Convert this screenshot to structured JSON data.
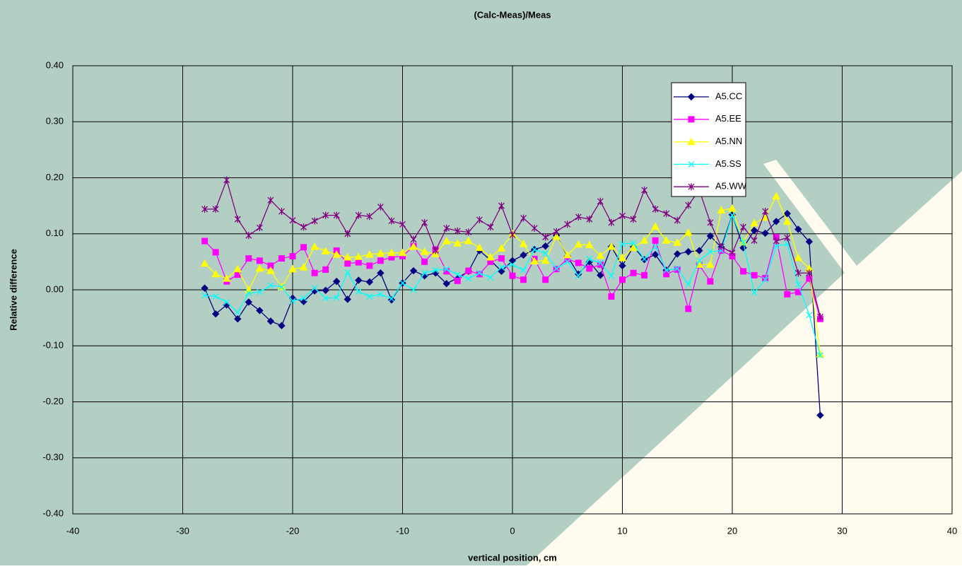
{
  "chart_data": {
    "type": "line",
    "title": "(Calc-Meas)/Meas",
    "x_label": "vertical position, cm",
    "y_label": "Relative difference",
    "x": [
      -28,
      -27,
      -26,
      -25,
      -24,
      -23,
      -22,
      -21,
      -20,
      -19,
      -18,
      -17,
      -16,
      -15,
      -14,
      -13,
      -12,
      -11,
      -10,
      -9,
      -8,
      -7,
      -6,
      -5,
      -4,
      -3,
      -2,
      -1,
      0,
      1,
      2,
      3,
      4,
      5,
      6,
      7,
      8,
      9,
      10,
      11,
      12,
      13,
      14,
      15,
      16,
      17,
      18,
      19,
      20,
      21,
      22,
      23,
      24,
      25,
      26,
      27,
      28
    ],
    "series": [
      {
        "name": "A5.CC",
        "color": "#000080",
        "marker": "diamond",
        "values": [
          0.003,
          -0.043,
          -0.027,
          -0.052,
          -0.022,
          -0.037,
          -0.056,
          -0.064,
          -0.015,
          -0.021,
          -0.002,
          -0.001,
          0.015,
          -0.017,
          0.017,
          0.014,
          0.03,
          -0.018,
          0.012,
          0.034,
          0.025,
          0.03,
          0.011,
          0.021,
          0.033,
          0.07,
          0.053,
          0.033,
          0.052,
          0.062,
          0.072,
          0.078,
          0.097,
          0.06,
          0.028,
          0.05,
          0.026,
          0.077,
          0.043,
          0.077,
          0.054,
          0.063,
          0.035,
          0.064,
          0.068,
          0.07,
          0.096,
          0.076,
          0.134,
          0.075,
          0.106,
          0.101,
          0.122,
          0.136,
          0.108,
          0.086,
          -0.224
        ]
      },
      {
        "name": "A5.EE",
        "color": "#ff00ff",
        "marker": "square",
        "values": [
          0.087,
          0.067,
          0.015,
          0.027,
          0.056,
          0.052,
          0.043,
          0.056,
          0.06,
          0.076,
          0.03,
          0.036,
          0.07,
          0.047,
          0.049,
          0.043,
          0.052,
          0.058,
          0.06,
          0.078,
          0.05,
          0.072,
          0.033,
          0.016,
          0.034,
          0.028,
          0.05,
          0.056,
          0.025,
          0.018,
          0.055,
          0.018,
          0.037,
          0.055,
          0.048,
          0.038,
          0.045,
          -0.012,
          0.018,
          0.03,
          0.026,
          0.088,
          0.028,
          0.036,
          -0.034,
          0.044,
          0.015,
          0.07,
          0.06,
          0.033,
          0.026,
          0.021,
          0.094,
          -0.008,
          -0.004,
          0.02,
          -0.052
        ]
      },
      {
        "name": "A5.NN",
        "color": "#ffff00",
        "marker": "triangle",
        "values": [
          0.047,
          0.028,
          0.02,
          0.037,
          0.0,
          0.038,
          0.034,
          0.005,
          0.037,
          0.04,
          0.077,
          0.069,
          0.063,
          0.058,
          0.059,
          0.063,
          0.065,
          0.066,
          0.066,
          0.077,
          0.068,
          0.064,
          0.087,
          0.083,
          0.087,
          0.075,
          0.058,
          0.074,
          0.1,
          0.082,
          0.051,
          0.052,
          0.095,
          0.062,
          0.081,
          0.08,
          0.061,
          0.077,
          0.057,
          0.075,
          0.088,
          0.113,
          0.088,
          0.084,
          0.102,
          0.045,
          0.045,
          0.142,
          0.145,
          0.085,
          0.119,
          0.129,
          0.167,
          0.122,
          0.057,
          0.038,
          -0.115
        ]
      },
      {
        "name": "A5.SS",
        "color": "#00ffff",
        "marker": "x",
        "values": [
          -0.01,
          -0.012,
          -0.022,
          -0.04,
          -0.006,
          -0.004,
          0.008,
          0.005,
          -0.02,
          -0.015,
          0.003,
          -0.015,
          -0.014,
          0.031,
          -0.003,
          -0.012,
          -0.008,
          -0.016,
          0.012,
          0.0,
          0.03,
          0.035,
          0.037,
          0.027,
          0.02,
          0.03,
          0.022,
          0.04,
          0.045,
          0.035,
          0.072,
          0.065,
          0.038,
          0.05,
          0.025,
          0.055,
          0.048,
          0.025,
          0.082,
          0.083,
          0.055,
          0.077,
          0.035,
          0.038,
          0.01,
          0.052,
          0.068,
          0.07,
          0.133,
          0.085,
          -0.005,
          0.018,
          0.078,
          0.082,
          0.01,
          -0.045,
          -0.117
        ]
      },
      {
        "name": "A5.WW",
        "color": "#800080",
        "marker": "asterisk",
        "values": [
          0.144,
          0.144,
          0.196,
          0.126,
          0.097,
          0.111,
          0.16,
          0.14,
          0.124,
          0.112,
          0.123,
          0.133,
          0.133,
          0.1,
          0.133,
          0.131,
          0.148,
          0.123,
          0.117,
          0.09,
          0.12,
          0.07,
          0.11,
          0.105,
          0.103,
          0.125,
          0.112,
          0.15,
          0.098,
          0.128,
          0.11,
          0.094,
          0.104,
          0.117,
          0.13,
          0.126,
          0.158,
          0.12,
          0.132,
          0.126,
          0.178,
          0.144,
          0.136,
          0.124,
          0.151,
          0.178,
          0.12,
          0.077,
          0.066,
          0.112,
          0.088,
          0.14,
          0.087,
          0.093,
          0.03,
          0.03,
          -0.048
        ]
      }
    ],
    "xlim": [
      -40,
      40
    ],
    "xticks": [
      -40,
      -30,
      -20,
      -10,
      0,
      10,
      20,
      30,
      40
    ],
    "ylim": [
      -0.4,
      0.4
    ],
    "yticks": [
      {
        "value": -0.4,
        "label": "-0.40"
      },
      {
        "value": -0.3,
        "label": "-0.30"
      },
      {
        "value": -0.2,
        "label": "-0.20"
      },
      {
        "value": -0.1,
        "label": "-0.10"
      },
      {
        "value": 0,
        "label": "0.00"
      },
      {
        "value": 0.1,
        "label": "0.10"
      },
      {
        "value": 0.2,
        "label": "0.20"
      },
      {
        "value": 0.3,
        "label": "0.30"
      },
      {
        "value": 0.4,
        "label": "0.40"
      }
    ],
    "grid": true,
    "legend": "top-right"
  }
}
